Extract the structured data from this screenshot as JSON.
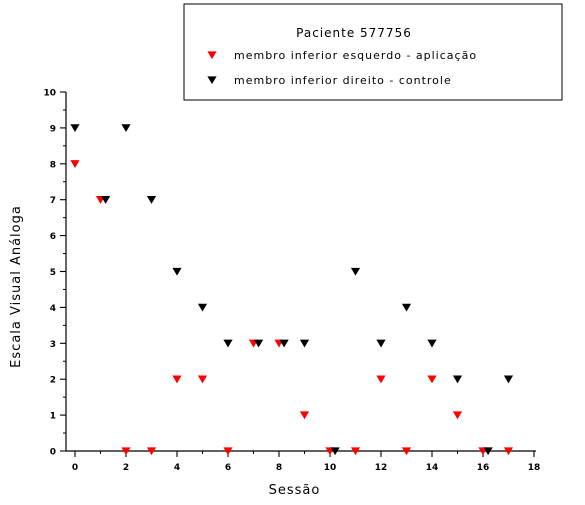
{
  "chart_data": {
    "type": "scatter",
    "title": "Paciente 577756",
    "xlabel": "Sessão",
    "ylabel": "Escala Visual Análoga",
    "xlim": [
      0,
      18
    ],
    "ylim": [
      0,
      10
    ],
    "xticks": [
      "0",
      "2",
      "4",
      "6",
      "8",
      "10",
      "12",
      "14",
      "16",
      "18"
    ],
    "yticks": [
      "0",
      "1",
      "2",
      "3",
      "4",
      "5",
      "6",
      "7",
      "8",
      "9",
      "10"
    ],
    "grid": false,
    "legend_position": "top-right",
    "marker": "down-triangle",
    "series": [
      {
        "name": "membro inferior esquerdo - aplicação",
        "color": "#ff0000",
        "points": [
          [
            0,
            8
          ],
          [
            1,
            7
          ],
          [
            2,
            0
          ],
          [
            3,
            0
          ],
          [
            4,
            2
          ],
          [
            5,
            2
          ],
          [
            6,
            0
          ],
          [
            7,
            3
          ],
          [
            8,
            3
          ],
          [
            9,
            1
          ],
          [
            10,
            0
          ],
          [
            11,
            0
          ],
          [
            12,
            2
          ],
          [
            13,
            0
          ],
          [
            14,
            2
          ],
          [
            15,
            1
          ],
          [
            16,
            0
          ],
          [
            17,
            0
          ]
        ]
      },
      {
        "name": "membro inferior direito - controle",
        "color": "#000000",
        "points": [
          [
            0,
            9
          ],
          [
            1.2,
            7
          ],
          [
            2,
            9
          ],
          [
            3,
            7
          ],
          [
            4,
            5
          ],
          [
            5,
            4
          ],
          [
            6,
            3
          ],
          [
            7.2,
            3
          ],
          [
            8.2,
            3
          ],
          [
            9,
            3
          ],
          [
            10.2,
            0
          ],
          [
            11,
            5
          ],
          [
            12,
            3
          ],
          [
            13,
            4
          ],
          [
            14,
            3
          ],
          [
            15,
            2
          ],
          [
            16.2,
            0
          ],
          [
            17,
            2
          ]
        ]
      }
    ]
  }
}
